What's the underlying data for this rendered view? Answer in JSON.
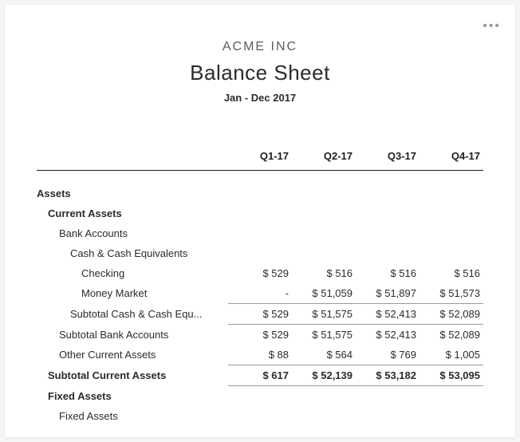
{
  "header": {
    "company": "ACME INC",
    "title": "Balance Sheet",
    "period": "Jan - Dec 2017"
  },
  "columns": [
    "Q1-17",
    "Q2-17",
    "Q3-17",
    "Q4-17"
  ],
  "sections": {
    "assets": "Assets",
    "current_assets": "Current Assets",
    "bank_accounts": "Bank Accounts",
    "cash_equiv": "Cash & Cash Equivalents",
    "checking": {
      "label": "Checking",
      "v": [
        "$ 529",
        "$ 516",
        "$ 516",
        "$ 516"
      ]
    },
    "money_market": {
      "label": "Money Market",
      "v": [
        "-",
        "$ 51,059",
        "$ 51,897",
        "$ 51,573"
      ]
    },
    "sub_cash": {
      "label": "Subtotal Cash & Cash Equ...",
      "v": [
        "$ 529",
        "$ 51,575",
        "$ 52,413",
        "$ 52,089"
      ]
    },
    "sub_bank": {
      "label": "Subtotal Bank Accounts",
      "v": [
        "$ 529",
        "$ 51,575",
        "$ 52,413",
        "$ 52,089"
      ]
    },
    "other_ca": {
      "label": "Other Current Assets",
      "v": [
        "$ 88",
        "$ 564",
        "$ 769",
        "$ 1,005"
      ]
    },
    "sub_ca": {
      "label": "Subtotal Current Assets",
      "v": [
        "$ 617",
        "$ 52,139",
        "$ 53,182",
        "$ 53,095"
      ]
    },
    "fixed_assets": "Fixed Assets",
    "fixed_assets_sub": "Fixed Assets"
  },
  "style": {
    "background": "#ffffff",
    "text_color": "#2b2b2b",
    "rule_color": "#1d1d1d",
    "subtotal_rule": "#9a9a9a",
    "company_color": "#5c5c5c",
    "font_size_body": 13,
    "font_size_title": 26,
    "font_size_company": 16
  }
}
